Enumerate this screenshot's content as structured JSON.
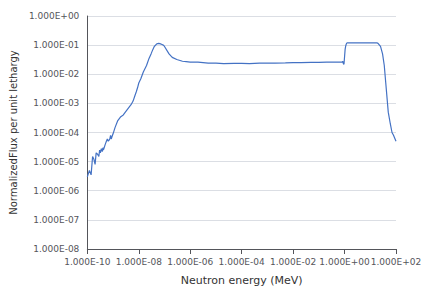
{
  "chart_data": {
    "type": "line",
    "xlabel": "Neutron energy (MeV)",
    "ylabel": "NormalizedFlux per unit lethargy",
    "log": true,
    "grid": true,
    "color": "#4472C4",
    "xlim": [
      1e-10,
      100
    ],
    "ylim": [
      1e-08,
      1
    ],
    "xticks": [
      {
        "value": 1e-10,
        "label": "1.000E-10"
      },
      {
        "value": 1e-08,
        "label": "1.000E-08"
      },
      {
        "value": 1e-06,
        "label": "1.000E-06"
      },
      {
        "value": 0.0001,
        "label": "1.000E-04"
      },
      {
        "value": 0.01,
        "label": "1.000E-02"
      },
      {
        "value": 1,
        "label": "1.000E+00"
      },
      {
        "value": 100,
        "label": "1.000E+02"
      }
    ],
    "yticks": [
      {
        "value": 1e-08,
        "label": "1.000E-08"
      },
      {
        "value": 1e-07,
        "label": "1.000E-07"
      },
      {
        "value": 1e-06,
        "label": "1.000E-06"
      },
      {
        "value": 1e-05,
        "label": "1.000E-05"
      },
      {
        "value": 0.0001,
        "label": "1.000E-04"
      },
      {
        "value": 0.001,
        "label": "1.000E-03"
      },
      {
        "value": 0.01,
        "label": "1.000E-02"
      },
      {
        "value": 0.1,
        "label": "1.000E-01"
      },
      {
        "value": 1,
        "label": "1.000E+00"
      }
    ],
    "x": [
      1e-10,
      1.2e-10,
      1.4e-10,
      1.6e-10,
      1.8e-10,
      2e-10,
      2.2e-10,
      2.5e-10,
      2.8e-10,
      3e-10,
      3.2e-10,
      3.5e-10,
      3.8e-10,
      4e-10,
      4.2e-10,
      4.5e-10,
      5e-10,
      5.5e-10,
      6e-10,
      6.5e-10,
      7e-10,
      7.5e-10,
      8e-10,
      8.5e-10,
      9e-10,
      9.5e-10,
      1e-09,
      1.2e-09,
      1.5e-09,
      2e-09,
      2.5e-09,
      3e-09,
      4e-09,
      5e-09,
      6e-09,
      7e-09,
      8e-09,
      9e-09,
      1e-08,
      1.2e-08,
      1.5e-08,
      2e-08,
      2.5e-08,
      3e-08,
      3.5e-08,
      4e-08,
      5e-08,
      6e-08,
      7e-08,
      8e-08,
      9e-08,
      1e-07,
      1.5e-07,
      2e-07,
      3e-07,
      5e-07,
      7e-07,
      1e-06,
      2e-06,
      5e-06,
      1e-05,
      2e-05,
      5e-05,
      0.0001,
      0.0002,
      0.0005,
      0.001,
      0.002,
      0.005,
      0.01,
      0.02,
      0.05,
      0.1,
      0.2,
      0.3,
      0.5,
      0.6,
      0.7,
      0.8,
      0.85,
      0.9,
      0.95,
      1.0,
      1.05,
      1.1,
      1.15,
      1.2,
      1.3,
      1.5,
      2.0,
      3.0,
      5.0,
      7.0,
      10.0,
      12.0,
      15.0,
      18.0,
      20.0,
      25.0,
      30.0,
      35.0,
      40.0,
      50.0,
      60.0,
      70.0,
      80.0,
      100.0
    ],
    "values": [
      3e-06,
      5e-06,
      3.5e-06,
      1.5e-05,
      1.2e-05,
      8e-06,
      2e-05,
      1.8e-05,
      1.5e-05,
      2.5e-05,
      2e-05,
      2.8e-05,
      2.2e-05,
      3e-05,
      2.5e-05,
      3e-05,
      4e-05,
      5e-05,
      6e-05,
      5e-05,
      5.5e-05,
      6e-05,
      8e-05,
      6e-05,
      7e-05,
      8e-05,
      9e-05,
      0.00015,
      0.00025,
      0.00035,
      0.0004,
      0.0005,
      0.0007,
      0.0009,
      0.0012,
      0.0018,
      0.0025,
      0.0035,
      0.005,
      0.007,
      0.012,
      0.02,
      0.035,
      0.05,
      0.07,
      0.09,
      0.11,
      0.115,
      0.11,
      0.105,
      0.1,
      0.09,
      0.05,
      0.038,
      0.032,
      0.028,
      0.027,
      0.026,
      0.026,
      0.024,
      0.024,
      0.023,
      0.0235,
      0.0235,
      0.023,
      0.024,
      0.024,
      0.024,
      0.0245,
      0.025,
      0.025,
      0.0255,
      0.0255,
      0.026,
      0.026,
      0.026,
      0.026,
      0.026,
      0.026,
      0.028,
      0.023,
      0.022,
      0.04,
      0.07,
      0.09,
      0.105,
      0.115,
      0.12,
      0.12,
      0.12,
      0.12,
      0.12,
      0.12,
      0.12,
      0.12,
      0.12,
      0.12,
      0.115,
      0.09,
      0.05,
      0.02,
      0.005,
      0.0005,
      0.0002,
      0.0001,
      8e-05,
      5e-05
    ]
  }
}
